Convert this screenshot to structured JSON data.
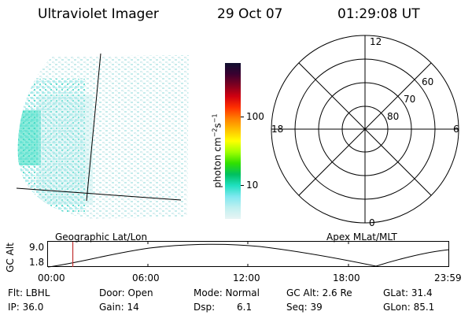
{
  "header": {
    "title": "Ultraviolet Imager",
    "date": "29 Oct 07",
    "time": "01:29:08 UT"
  },
  "colorbar": {
    "label": "photon cm^-2 s^-1",
    "ticks": [
      "100",
      "10"
    ],
    "scale": "log",
    "colors": [
      "#101030",
      "#3a0030",
      "#800020",
      "#d00010",
      "#ff3000",
      "#ff8000",
      "#ffc000",
      "#ffff00",
      "#a0ff00",
      "#30e000",
      "#00c060",
      "#20e0c0",
      "#80e8f0",
      "#c0f0f0",
      "#e8f4f4"
    ]
  },
  "polar": {
    "ring_labels": [
      "60",
      "70",
      "80"
    ],
    "mlt_labels": {
      "top": "12",
      "left": "18",
      "right": "6",
      "bottom": "0"
    }
  },
  "altitude_plot": {
    "left_label": "Geographic Lat/Lon",
    "right_label": "Apex MLat/MLT",
    "y_axis_label": "GC Alt",
    "y_ticks": [
      "9.0",
      "1.8"
    ],
    "x_ticks": [
      "00:00",
      "06:00",
      "12:00",
      "18:00",
      "23:59"
    ],
    "current_time_marker_hours": 1.485
  },
  "info": {
    "row1": {
      "filter": "Flt: LBHL",
      "door": "Door: Open",
      "mode": "Mode: Normal",
      "gc_alt": "GC Alt: 2.6 Re",
      "glat": "GLat: 31.4"
    },
    "row2": {
      "ip": "IP: 36.0",
      "gain": "Gain: 14",
      "dsp": "Dsp:",
      "dsp_value": "6.1",
      "seq": "Seq: 39",
      "glon": "GLon: 85.1"
    }
  },
  "colors": {
    "marker": "#c03030"
  }
}
